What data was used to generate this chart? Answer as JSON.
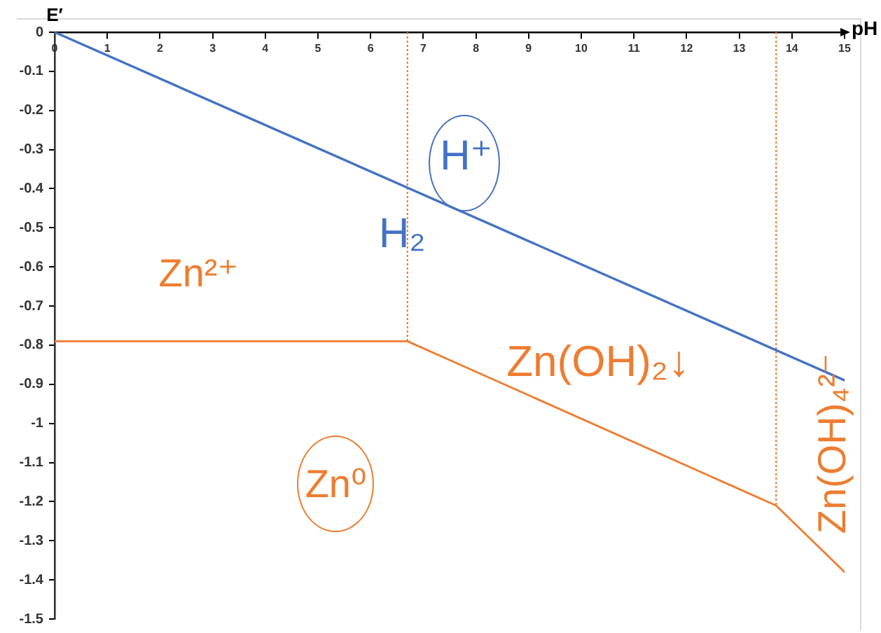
{
  "chart_data": {
    "type": "line",
    "xlabel": "pH",
    "ylabel": "E′",
    "xlim": [
      0,
      15
    ],
    "ylim": [
      -1.5,
      0
    ],
    "xticks": [
      0,
      1,
      2,
      3,
      4,
      5,
      6,
      7,
      8,
      9,
      10,
      11,
      12,
      13,
      14,
      15
    ],
    "yticks": [
      0,
      -0.1,
      -0.2,
      -0.3,
      -0.4,
      -0.5,
      -0.6,
      -0.7,
      -0.8,
      -0.9,
      -1,
      -1.1,
      -1.2,
      -1.3,
      -1.4,
      -1.5
    ],
    "series": [
      {
        "color": "#4472c4",
        "x": [
          0,
          15
        ],
        "values": [
          0,
          -0.89
        ]
      },
      {
        "color": "#ed7d31",
        "x": [
          0,
          6.7,
          13.7,
          15
        ],
        "values": [
          -0.79,
          -0.79,
          -1.21,
          -1.38
        ]
      },
      {
        "color": "#ed7d31",
        "x": [
          6.7,
          6.7
        ],
        "values": [
          0,
          -0.79
        ],
        "line_style": "dotted"
      },
      {
        "color": "#ed7d31",
        "x": [
          13.7,
          13.7
        ],
        "values": [
          0,
          -1.21
        ],
        "line_style": "dotted"
      }
    ],
    "annotations": [
      "H⁺",
      {
        "text": "H₂",
        "x": 6.6,
        "y": -0.52
      },
      "Zn²⁺",
      "Zn(OH)₂↓",
      "Zn(OH)₄²⁻",
      "Zn⁰"
    ]
  }
}
